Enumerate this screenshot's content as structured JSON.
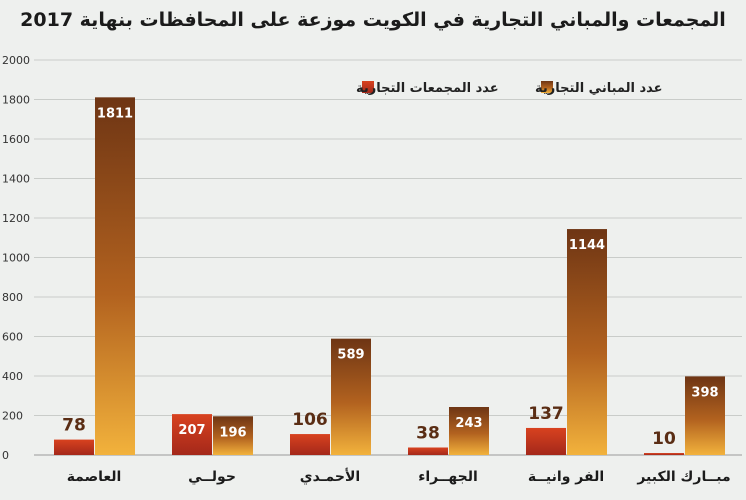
{
  "chart_data": {
    "type": "bar",
    "title": "المجمعات والمباني التجارية في الكويت موزعة على المحافظات بنهاية 2017",
    "categories": [
      "العاصمة",
      "حولــي",
      "الأحمـدي",
      "الجهــراء",
      "الفر وانيــة",
      "مبــارك الكبير"
    ],
    "series": [
      {
        "name": "عدد المجمعات التجارية",
        "values": [
          78,
          207,
          106,
          38,
          137,
          10
        ],
        "color": "#c8301c"
      },
      {
        "name": "عدد المباني التجارية",
        "values": [
          1811,
          196,
          589,
          243,
          1144,
          398
        ],
        "color": "#b8621f"
      }
    ],
    "ylim": [
      0,
      2000
    ],
    "yticks": [
      0,
      200,
      400,
      600,
      800,
      1000,
      1200,
      1400,
      1600,
      1800,
      2000
    ],
    "grid": true,
    "legend_position": "top"
  }
}
